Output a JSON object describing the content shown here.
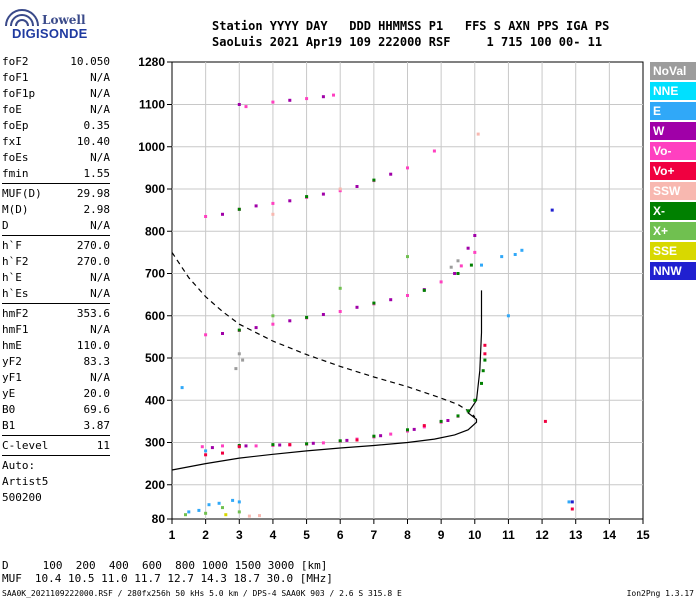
{
  "logo": {
    "line1": "Lowell",
    "line2": "DIGISONDE"
  },
  "header": {
    "line1": "Station YYYY DAY   DDD HHMMSS P1   FFS S AXN PPS IGA PS",
    "line2": "SaoLuis 2021 Apr19 109 222000 RSF     1 715 100 00- 11"
  },
  "params": [
    {
      "k": "foF2",
      "v": "10.050"
    },
    {
      "k": "foF1",
      "v": "N/A"
    },
    {
      "k": "foF1p",
      "v": "N/A"
    },
    {
      "k": "foE",
      "v": "N/A"
    },
    {
      "k": "foEp",
      "v": "0.35"
    },
    {
      "k": "fxI",
      "v": "10.40"
    },
    {
      "k": "foEs",
      "v": "N/A"
    },
    {
      "k": "fmin",
      "v": "1.55"
    },
    {
      "k": "MUF(D)",
      "v": "29.98",
      "sep": true
    },
    {
      "k": "M(D)",
      "v": "2.98"
    },
    {
      "k": "D",
      "v": "N/A"
    },
    {
      "k": "h`F",
      "v": "270.0",
      "sep": true
    },
    {
      "k": "h`F2",
      "v": "270.0"
    },
    {
      "k": "h`E",
      "v": "N/A"
    },
    {
      "k": "h`Es",
      "v": "N/A"
    },
    {
      "k": "hmF2",
      "v": "353.6",
      "sep": true
    },
    {
      "k": "hmF1",
      "v": "N/A"
    },
    {
      "k": "hmE",
      "v": "110.0"
    },
    {
      "k": "yF2",
      "v": "83.3"
    },
    {
      "k": "yF1",
      "v": "N/A"
    },
    {
      "k": "yE",
      "v": "20.0"
    },
    {
      "k": "B0",
      "v": "69.6"
    },
    {
      "k": "B1",
      "v": "3.87"
    },
    {
      "k": "C-level",
      "v": "11",
      "sep": true
    }
  ],
  "auto": {
    "label": "Auto:",
    "name": "Artist5",
    "code": "500200"
  },
  "legend": [
    {
      "label": "NoVal",
      "color": "#9c9c9c"
    },
    {
      "label": "NNE",
      "color": "#00e0ff"
    },
    {
      "label": "E",
      "color": "#30a8f8"
    },
    {
      "label": "W",
      "color": "#a000a8"
    },
    {
      "label": "Vo-",
      "color": "#ff40c0"
    },
    {
      "label": "Vo+",
      "color": "#f00040"
    },
    {
      "label": "SSW",
      "color": "#f8b8b0"
    },
    {
      "label": "X-",
      "color": "#008000"
    },
    {
      "label": "X+",
      "color": "#70c050"
    },
    {
      "label": "SSE",
      "color": "#d8d800"
    },
    {
      "label": "NNW",
      "color": "#2020d0"
    }
  ],
  "chart_data": {
    "type": "scatter",
    "xlabel": "",
    "ylabel": "",
    "xlim": [
      1,
      15
    ],
    "ylim": [
      80,
      1280
    ],
    "x_ticks": [
      1,
      2,
      3,
      4,
      5,
      6,
      7,
      8,
      9,
      10,
      11,
      12,
      13,
      14,
      15
    ],
    "y_ticks": [
      80,
      200,
      300,
      400,
      500,
      600,
      700,
      800,
      900,
      1000,
      1100,
      1280
    ],
    "grid": true,
    "series": [
      {
        "name": "Vo-",
        "color": "#ff40c0",
        "points": [
          [
            1.9,
            290
          ],
          [
            2.5,
            292
          ],
          [
            3.0,
            291
          ],
          [
            3.5,
            292
          ],
          [
            4.0,
            293
          ],
          [
            4.5,
            294
          ],
          [
            5.0,
            296
          ],
          [
            5.5,
            299
          ],
          [
            6.0,
            303
          ],
          [
            6.5,
            308
          ],
          [
            7.0,
            313
          ],
          [
            7.5,
            320
          ],
          [
            8.0,
            327
          ],
          [
            8.5,
            337
          ],
          [
            9.0,
            348
          ],
          [
            9.5,
            362
          ],
          [
            2.0,
            555
          ],
          [
            3.0,
            565
          ],
          [
            4.0,
            580
          ],
          [
            5.0,
            595
          ],
          [
            6.0,
            610
          ],
          [
            7.0,
            628
          ],
          [
            8.0,
            648
          ],
          [
            9.0,
            680
          ],
          [
            9.6,
            718
          ],
          [
            10.0,
            750
          ],
          [
            2.0,
            835
          ],
          [
            3.0,
            852
          ],
          [
            4.0,
            866
          ],
          [
            5.0,
            880
          ],
          [
            6.0,
            896
          ],
          [
            7.0,
            920
          ],
          [
            8.0,
            950
          ],
          [
            8.8,
            990
          ],
          [
            3.2,
            1095
          ],
          [
            4.0,
            1110
          ],
          [
            5.0,
            1125
          ],
          [
            5.8,
            1140
          ]
        ]
      },
      {
        "name": "W",
        "color": "#a000a8",
        "points": [
          [
            2.2,
            288
          ],
          [
            3.2,
            292
          ],
          [
            4.2,
            294
          ],
          [
            5.2,
            298
          ],
          [
            6.2,
            305
          ],
          [
            7.2,
            316
          ],
          [
            8.2,
            331
          ],
          [
            9.2,
            352
          ],
          [
            2.5,
            558
          ],
          [
            3.5,
            572
          ],
          [
            4.5,
            588
          ],
          [
            5.5,
            603
          ],
          [
            6.5,
            620
          ],
          [
            7.5,
            638
          ],
          [
            8.5,
            662
          ],
          [
            9.4,
            700
          ],
          [
            9.8,
            760
          ],
          [
            10.0,
            790
          ],
          [
            2.5,
            840
          ],
          [
            3.5,
            860
          ],
          [
            4.5,
            872
          ],
          [
            5.5,
            888
          ],
          [
            6.5,
            906
          ],
          [
            7.5,
            935
          ],
          [
            3.0,
            1100
          ],
          [
            4.5,
            1118
          ],
          [
            5.5,
            1133
          ]
        ]
      },
      {
        "name": "X-",
        "color": "#008000",
        "points": [
          [
            3.0,
            293
          ],
          [
            4.0,
            295
          ],
          [
            5.0,
            297
          ],
          [
            6.0,
            304
          ],
          [
            7.0,
            315
          ],
          [
            8.0,
            330
          ],
          [
            9.0,
            350
          ],
          [
            9.5,
            363
          ],
          [
            9.8,
            375
          ],
          [
            10.0,
            400
          ],
          [
            10.2,
            440
          ],
          [
            10.25,
            470
          ],
          [
            10.3,
            495
          ],
          [
            3.0,
            566
          ],
          [
            5.0,
            596
          ],
          [
            7.0,
            630
          ],
          [
            8.5,
            660
          ],
          [
            9.5,
            700
          ],
          [
            9.9,
            720
          ],
          [
            3.0,
            852
          ],
          [
            5.0,
            882
          ],
          [
            7.0,
            921
          ]
        ]
      },
      {
        "name": "Vo+",
        "color": "#f00040",
        "points": [
          [
            2.0,
            271
          ],
          [
            2.5,
            275
          ],
          [
            3.0,
            290
          ],
          [
            4.5,
            295
          ],
          [
            6.5,
            306
          ],
          [
            8.5,
            340
          ],
          [
            10.3,
            510
          ],
          [
            10.3,
            530
          ],
          [
            12.1,
            350
          ],
          [
            12.9,
            115
          ]
        ]
      },
      {
        "name": "E",
        "color": "#30a8f8",
        "points": [
          [
            1.5,
            105
          ],
          [
            1.8,
            110
          ],
          [
            2.1,
            130
          ],
          [
            2.4,
            135
          ],
          [
            2.8,
            145
          ],
          [
            3.0,
            140
          ],
          [
            2.0,
            280
          ],
          [
            10.2,
            720
          ],
          [
            10.8,
            740
          ],
          [
            11.2,
            745
          ],
          [
            11.4,
            755
          ],
          [
            11.0,
            600
          ],
          [
            1.3,
            430
          ],
          [
            12.8,
            140
          ]
        ]
      },
      {
        "name": "X+",
        "color": "#70c050",
        "points": [
          [
            1.4,
            95
          ],
          [
            2.0,
            100
          ],
          [
            2.5,
            120
          ],
          [
            3.0,
            105
          ],
          [
            8.0,
            740
          ],
          [
            6.0,
            665
          ],
          [
            4.0,
            600
          ]
        ]
      },
      {
        "name": "NoVal",
        "color": "#9c9c9c",
        "points": [
          [
            2.9,
            475
          ],
          [
            3.0,
            510
          ],
          [
            3.1,
            495
          ],
          [
            9.3,
            715
          ],
          [
            9.5,
            730
          ]
        ]
      },
      {
        "name": "NNW",
        "color": "#2020d0",
        "points": [
          [
            12.9,
            140
          ],
          [
            12.3,
            850
          ]
        ]
      },
      {
        "name": "SSW",
        "color": "#f8b8b0",
        "points": [
          [
            3.3,
            90
          ],
          [
            3.6,
            92
          ],
          [
            4.0,
            840
          ],
          [
            6.0,
            900
          ],
          [
            10.1,
            1030
          ]
        ]
      },
      {
        "name": "SSE",
        "color": "#d8d800",
        "points": [
          [
            2.6,
            95
          ]
        ]
      }
    ],
    "profile_curves": [
      {
        "name": "true-height",
        "style": "solid",
        "points": [
          [
            1.0,
            235
          ],
          [
            2.0,
            250
          ],
          [
            3.0,
            263
          ],
          [
            4.0,
            272
          ],
          [
            5.0,
            280
          ],
          [
            6.0,
            287
          ],
          [
            7.0,
            293
          ],
          [
            8.0,
            300
          ],
          [
            8.8,
            308
          ],
          [
            9.4,
            318
          ],
          [
            9.8,
            330
          ],
          [
            10.05,
            348
          ],
          [
            10.05,
            355
          ],
          [
            9.8,
            370
          ],
          [
            10.05,
            400
          ],
          [
            10.15,
            470
          ],
          [
            10.2,
            560
          ],
          [
            10.2,
            660
          ]
        ]
      },
      {
        "name": "density-profile",
        "style": "dashed",
        "points": [
          [
            1.0,
            750
          ],
          [
            1.5,
            690
          ],
          [
            2.0,
            645
          ],
          [
            2.5,
            610
          ],
          [
            3.0,
            580
          ],
          [
            4.0,
            540
          ],
          [
            5.0,
            508
          ],
          [
            6.0,
            480
          ],
          [
            7.0,
            455
          ],
          [
            8.0,
            432
          ],
          [
            9.0,
            405
          ],
          [
            9.5,
            390
          ],
          [
            9.9,
            370
          ],
          [
            10.0,
            360
          ]
        ]
      }
    ]
  },
  "bottom": {
    "row1_label": "D",
    "row1_values": "100  200  400  600  800 1000 1500 3000 [km]",
    "row2_label": "MUF",
    "row2_values": "10.4 10.5 11.0 11.7 12.7 14.3 18.7 30.0 [MHz]"
  },
  "footer": "SAA0K_2021109222000.RSF / 280fx256h 50 kHs 5.0 km / DPS-4 SAA0K 903 / 2.6 S 315.8 E",
  "version": "Ion2Png 1.3.17"
}
